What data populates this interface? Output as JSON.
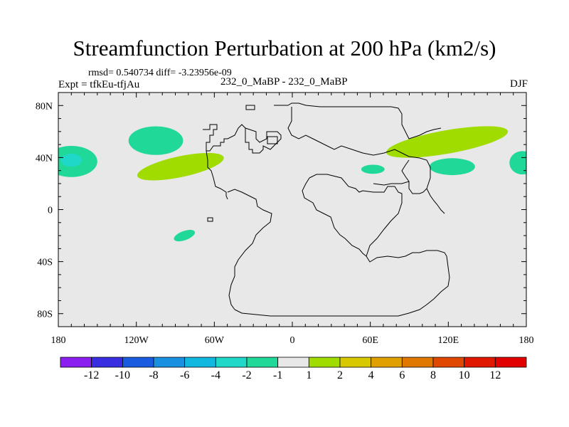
{
  "header": {
    "title": "Streamfunction Perturbation at 200 hPa (km2/s)",
    "stats": "rmsd= 0.540734 diff= -3.23956e-09",
    "experiment": "Expt = tfkEu-tfjAu",
    "center_label": "232_0_MaBP - 232_0_MaBP",
    "season": "DJF"
  },
  "colors": {
    "background_field": "#e8e8e8",
    "coastline": "#000000"
  },
  "chart_data": {
    "type": "heatmap",
    "title": "Streamfunction Perturbation at 200 hPa (km2/s)",
    "x_axis": {
      "range": [
        -180,
        180
      ],
      "ticks": [
        -180,
        -120,
        -60,
        0,
        60,
        120,
        180
      ],
      "tick_labels": [
        "180",
        "120W",
        "60W",
        "0",
        "60E",
        "120E",
        "180"
      ]
    },
    "y_axis": {
      "range": [
        -90,
        90
      ],
      "ticks": [
        80,
        40,
        0,
        -40,
        -80
      ],
      "tick_labels": [
        "80N",
        "40N",
        "0",
        "40S",
        "80S"
      ]
    },
    "colorbar": {
      "labels": [
        "-12",
        "-10",
        "-8",
        "-6",
        "-4",
        "-2",
        "-1",
        "1",
        "2",
        "4",
        "6",
        "8",
        "10",
        "12"
      ],
      "colors": [
        "#8a1ff0",
        "#3a2fe0",
        "#1a5ce0",
        "#1a90e0",
        "#10b8e0",
        "#20d8c8",
        "#20d898",
        "#e8e8e8",
        "#a0dc00",
        "#d8c800",
        "#e0a000",
        "#e07800",
        "#e04800",
        "#e01800",
        "#e00000"
      ]
    },
    "features": [
      {
        "lon": -105,
        "lat": 53,
        "width_lon": 42,
        "height_lat": 22,
        "value": "-1 to -2"
      },
      {
        "lon": -170,
        "lat": 37,
        "width_lon": 40,
        "height_lat": 24,
        "value": "-1 to -2"
      },
      {
        "lon": -170,
        "lat": 38,
        "width_lon": 16,
        "height_lat": 10,
        "value": "-2 to -4"
      },
      {
        "lon": -86,
        "lat": 33,
        "width_lon": 68,
        "height_lat": 16,
        "value": "1 to 2"
      },
      {
        "lon": 119,
        "lat": 52,
        "width_lon": 95,
        "height_lat": 18,
        "value": "1 to 2"
      },
      {
        "lon": 123,
        "lat": 33,
        "width_lon": 35,
        "height_lat": 13,
        "value": "-1 to -2"
      },
      {
        "lon": 177,
        "lat": 36,
        "width_lon": 20,
        "height_lat": 18,
        "value": "-1 to -2"
      },
      {
        "lon": 62,
        "lat": 31,
        "width_lon": 18,
        "height_lat": 7,
        "value": "-1 to -2"
      },
      {
        "lon": -83,
        "lat": -20,
        "width_lon": 17,
        "height_lat": 7,
        "value": "-1 to -2"
      }
    ]
  }
}
